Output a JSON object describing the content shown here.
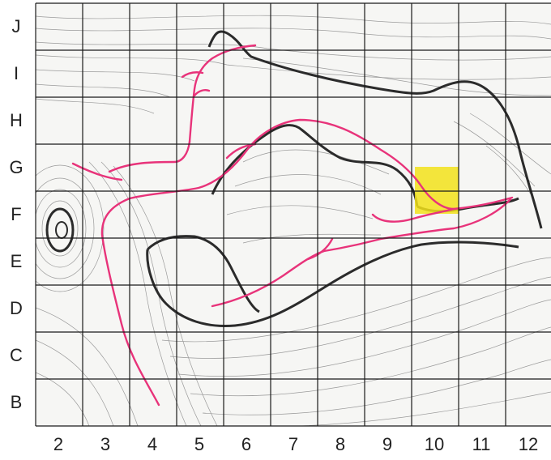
{
  "map": {
    "row_labels": [
      "J",
      "I",
      "H",
      "G",
      "F",
      "E",
      "D",
      "C",
      "B"
    ],
    "column_labels": [
      "2",
      "3",
      "4",
      "5",
      "6",
      "7",
      "8",
      "9",
      "10",
      "11",
      "12"
    ],
    "colors": {
      "background": "#ffffff",
      "contour": "#9a9a9a",
      "ridge": "#2b2b2b",
      "grid": "#1a1a1a",
      "trail": "#e8337a",
      "highlight": "#f2e21a"
    },
    "highlight_cell": {
      "column": "10",
      "row": "F"
    }
  }
}
